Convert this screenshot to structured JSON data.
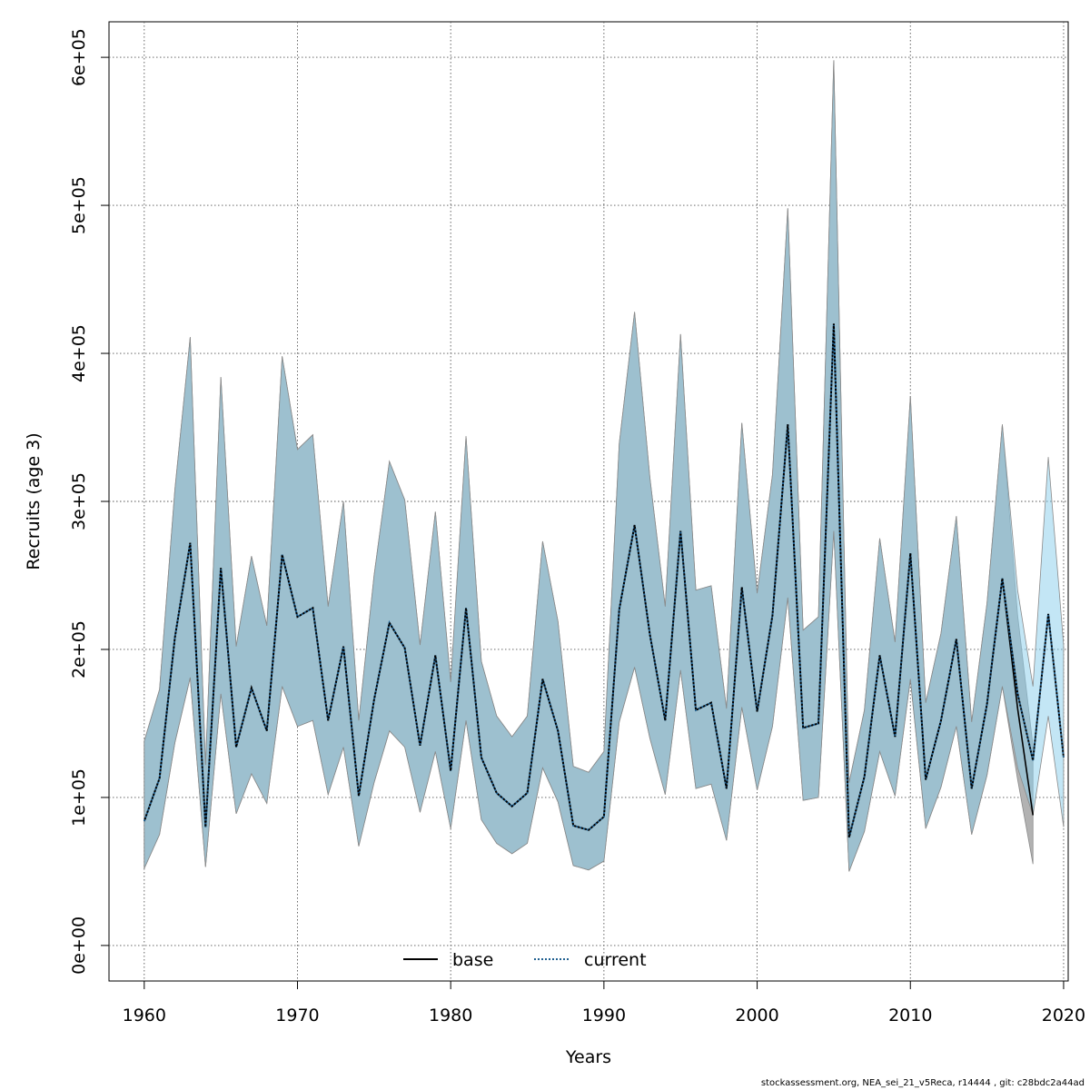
{
  "chart_data": {
    "type": "line",
    "title": "",
    "xlabel": "Years",
    "ylabel": "Recruits (age 3)",
    "xlim": [
      1957.7,
      2020.3
    ],
    "ylim": [
      -24000,
      624000
    ],
    "x_ticks": [
      1960,
      1970,
      1980,
      1990,
      2000,
      2010,
      2020
    ],
    "x_tick_labels": [
      "1960",
      "1970",
      "1980",
      "1990",
      "2000",
      "2010",
      "2020"
    ],
    "y_ticks": [
      0,
      100000,
      200000,
      300000,
      400000,
      500000,
      600000
    ],
    "y_tick_labels": [
      "0e+00",
      "1e+05",
      "2e+05",
      "3e+05",
      "4e+05",
      "5e+05",
      "6e+05"
    ],
    "grid": true,
    "legend_position": "bottom-center",
    "years": [
      1960,
      1961,
      1962,
      1963,
      1964,
      1965,
      1966,
      1967,
      1968,
      1969,
      1970,
      1971,
      1972,
      1973,
      1974,
      1975,
      1976,
      1977,
      1978,
      1979,
      1980,
      1981,
      1982,
      1983,
      1984,
      1985,
      1986,
      1987,
      1988,
      1989,
      1990,
      1991,
      1992,
      1993,
      1994,
      1995,
      1996,
      1997,
      1998,
      1999,
      2000,
      2001,
      2002,
      2003,
      2004,
      2005,
      2006,
      2007,
      2008,
      2009,
      2010,
      2011,
      2012,
      2013,
      2014,
      2015,
      2016,
      2017,
      2018,
      2019,
      2020
    ],
    "series": [
      {
        "name": "base",
        "line_color": "#000000",
        "line_style": "solid",
        "band_color": "#b2b2b2",
        "values": [
          84000,
          113000,
          208000,
          272000,
          80000,
          255000,
          134000,
          174000,
          145000,
          264000,
          222000,
          228000,
          152000,
          202000,
          101000,
          166000,
          218000,
          201000,
          135000,
          196000,
          118000,
          228000,
          127000,
          103000,
          94000,
          103000,
          180000,
          145000,
          81000,
          78000,
          87000,
          227000,
          284000,
          210000,
          152000,
          280000,
          159000,
          164000,
          106000,
          242000,
          158000,
          223000,
          352000,
          147000,
          150000,
          420000,
          73000,
          114000,
          196000,
          141000,
          265000,
          112000,
          152000,
          207000,
          106000,
          163000,
          248000,
          160000,
          88000,
          null,
          null
        ],
        "lower": [
          52000,
          75000,
          137000,
          181000,
          53000,
          170000,
          89000,
          116000,
          96000,
          175000,
          148000,
          152000,
          102000,
          134000,
          67000,
          110000,
          145000,
          134000,
          90000,
          131000,
          79000,
          152000,
          85000,
          69000,
          62000,
          69000,
          120000,
          97000,
          54000,
          51000,
          57000,
          151000,
          188000,
          140000,
          102000,
          186000,
          106000,
          109000,
          71000,
          161000,
          105000,
          148000,
          235000,
          98000,
          100000,
          280000,
          50000,
          77000,
          131000,
          101000,
          180000,
          79000,
          107000,
          148000,
          75000,
          115000,
          175000,
          112000,
          55000,
          null,
          null
        ],
        "upper": [
          138000,
          173000,
          308000,
          411000,
          122000,
          384000,
          202000,
          263000,
          216000,
          398000,
          335000,
          345000,
          229000,
          300000,
          152000,
          250000,
          327000,
          301000,
          203000,
          293000,
          178000,
          344000,
          192000,
          155000,
          141000,
          155000,
          273000,
          219000,
          121000,
          117000,
          131000,
          339000,
          428000,
          316000,
          229000,
          413000,
          240000,
          243000,
          160000,
          353000,
          238000,
          318000,
          498000,
          213000,
          222000,
          598000,
          110000,
          159000,
          275000,
          205000,
          371000,
          164000,
          211000,
          290000,
          151000,
          231000,
          352000,
          223000,
          135000,
          null,
          null
        ]
      },
      {
        "name": "current",
        "line_color": "#1f5f8f",
        "line_style": "dotted",
        "band_color": "#87ceeb",
        "values": [
          84000,
          113000,
          208000,
          272000,
          80000,
          255000,
          134000,
          174000,
          145000,
          264000,
          222000,
          228000,
          152000,
          202000,
          101000,
          166000,
          218000,
          201000,
          135000,
          196000,
          118000,
          228000,
          127000,
          103000,
          94000,
          103000,
          180000,
          145000,
          81000,
          78000,
          87000,
          227000,
          284000,
          210000,
          152000,
          280000,
          159000,
          164000,
          106000,
          242000,
          158000,
          223000,
          352000,
          147000,
          150000,
          420000,
          73000,
          114000,
          196000,
          141000,
          265000,
          112000,
          152000,
          207000,
          106000,
          163000,
          248000,
          170000,
          125000,
          224000,
          127000
        ],
        "lower": [
          52000,
          75000,
          137000,
          181000,
          53000,
          170000,
          89000,
          116000,
          96000,
          175000,
          148000,
          152000,
          102000,
          134000,
          67000,
          110000,
          145000,
          134000,
          90000,
          131000,
          79000,
          152000,
          85000,
          69000,
          62000,
          69000,
          120000,
          97000,
          54000,
          51000,
          57000,
          151000,
          188000,
          140000,
          102000,
          186000,
          106000,
          109000,
          71000,
          161000,
          105000,
          148000,
          235000,
          98000,
          100000,
          280000,
          50000,
          77000,
          131000,
          101000,
          180000,
          79000,
          107000,
          148000,
          75000,
          115000,
          175000,
          120000,
          88000,
          155000,
          80000
        ],
        "upper": [
          138000,
          173000,
          308000,
          411000,
          122000,
          384000,
          202000,
          263000,
          216000,
          398000,
          335000,
          345000,
          229000,
          300000,
          152000,
          250000,
          327000,
          301000,
          203000,
          293000,
          178000,
          344000,
          192000,
          155000,
          141000,
          155000,
          273000,
          219000,
          121000,
          117000,
          131000,
          339000,
          428000,
          316000,
          229000,
          413000,
          240000,
          243000,
          160000,
          353000,
          238000,
          318000,
          498000,
          213000,
          222000,
          598000,
          110000,
          159000,
          275000,
          205000,
          371000,
          164000,
          211000,
          290000,
          151000,
          231000,
          352000,
          240000,
          175000,
          330000,
          203000
        ]
      }
    ]
  },
  "legend": {
    "base_label": "base",
    "current_label": "current"
  },
  "footer": {
    "text": "stockassessment.org, NEA_sei_21_v5Reca, r14444 , git: c28bdc2a44ad"
  }
}
